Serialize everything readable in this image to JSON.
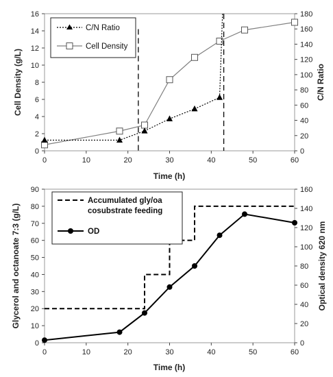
{
  "chart_data": [
    {
      "type": "line",
      "xlabel": "Time (h)",
      "ylabel_left": "Cell Density (g/L)",
      "ylabel_right": "C/N Ratio",
      "xlim": [
        0,
        60
      ],
      "ylim_left": [
        0,
        16
      ],
      "ylim_right": [
        0,
        180
      ],
      "x_ticks": [
        0,
        10,
        20,
        30,
        40,
        50,
        60
      ],
      "y_ticks_left": [
        0,
        2,
        4,
        6,
        8,
        10,
        12,
        14,
        16
      ],
      "y_ticks_right": [
        0,
        20,
        40,
        60,
        80,
        100,
        120,
        140,
        160,
        180
      ],
      "grid": false,
      "legend_position": "top-left",
      "series": [
        {
          "name": "C/N Ratio",
          "axis": "right",
          "style": "dotted",
          "marker": "filled-triangle",
          "color": "#000000",
          "x": [
            0,
            18,
            24,
            30,
            36,
            42
          ],
          "y": [
            14,
            14,
            26,
            42,
            55,
            70
          ]
        },
        {
          "name": "Cell Density",
          "axis": "left",
          "style": "solid",
          "marker": "open-square",
          "color": "#7f7f7f",
          "x": [
            0,
            18,
            24,
            30,
            36,
            42,
            48,
            60
          ],
          "y": [
            0.7,
            2.3,
            3.0,
            8.3,
            10.9,
            12.8,
            14.1,
            15.0
          ]
        }
      ],
      "reference_lines": [
        {
          "x": 22.5,
          "y_top": 14.2,
          "style": "dashed"
        },
        {
          "x": 43,
          "y_top": 16,
          "style": "dashed"
        }
      ],
      "extra_segments": [
        {
          "from": [
            42,
            70
          ],
          "to": [
            42.7,
            180
          ],
          "axis": "right",
          "style": "dotted"
        }
      ]
    },
    {
      "type": "line",
      "xlabel": "Time (h)",
      "ylabel_left": "Glycerol and octanoate 7:3 (g/L)",
      "ylabel_right": "Optical density 620 nm",
      "xlim": [
        0,
        60
      ],
      "ylim_left": [
        0,
        90
      ],
      "ylim_right": [
        0,
        160
      ],
      "x_ticks": [
        0,
        10,
        20,
        30,
        40,
        50,
        60
      ],
      "y_ticks_left": [
        0,
        10,
        20,
        30,
        40,
        50,
        60,
        70,
        80,
        90
      ],
      "y_ticks_right": [
        0,
        20,
        40,
        60,
        80,
        100,
        120,
        140,
        160
      ],
      "grid": false,
      "legend_position": "top-left",
      "series": [
        {
          "name": "Accumulated gly/oa cosubstrate feeding",
          "axis": "left",
          "style": "dashed-step",
          "color": "#000000",
          "x": [
            0,
            24,
            24,
            30,
            30,
            36,
            36,
            60
          ],
          "y": [
            20,
            20,
            40,
            40,
            60,
            60,
            80,
            80
          ]
        },
        {
          "name": "OD",
          "axis": "right",
          "style": "solid",
          "marker": "filled-circle",
          "color": "#000000",
          "x": [
            0,
            18,
            24,
            30,
            36,
            42,
            48,
            60
          ],
          "y": [
            2.7,
            11,
            31,
            58,
            80,
            112,
            134,
            125
          ]
        }
      ]
    }
  ]
}
